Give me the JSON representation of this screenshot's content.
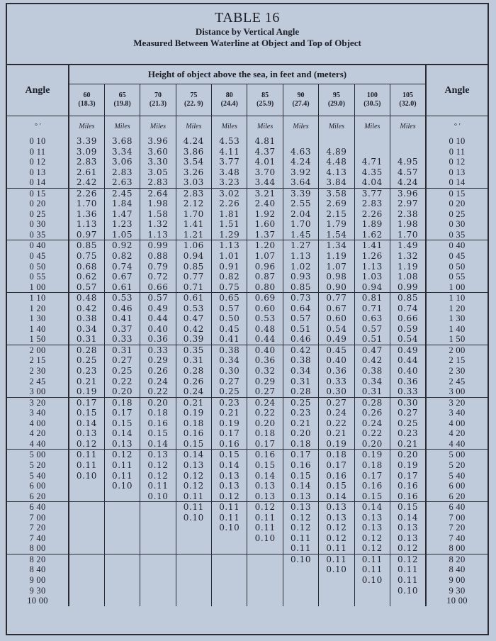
{
  "title": {
    "table_number": "TABLE 16",
    "subtitle": "Distance by Vertical Angle",
    "subtitle2": "Measured Between Waterline at Object and Top of Object"
  },
  "header": {
    "angle_label": "Angle",
    "height_label": "Height of object above the sea, in feet and (meters)",
    "angle_units": "°  ′",
    "unit_label": "Miles",
    "columns": [
      {
        "feet": "60",
        "meters": "(18.3)"
      },
      {
        "feet": "65",
        "meters": "(19.8)"
      },
      {
        "feet": "70",
        "meters": "(21.3)"
      },
      {
        "feet": "75",
        "meters": "(22. 9)"
      },
      {
        "feet": "80",
        "meters": "(24.4)"
      },
      {
        "feet": "85",
        "meters": "(25.9)"
      },
      {
        "feet": "90",
        "meters": "(27.4)"
      },
      {
        "feet": "95",
        "meters": "(29.0)"
      },
      {
        "feet": "100",
        "meters": "(30.5)"
      },
      {
        "feet": "105",
        "meters": "(32.0)"
      }
    ]
  },
  "group_sizes": [
    5,
    5,
    5,
    5,
    5,
    5,
    5,
    5,
    6
  ],
  "rows": [
    {
      "angle": "0 10",
      "values": [
        "3.39",
        "3.68",
        "3.96",
        "4.24",
        "4.53",
        "4.81",
        "",
        "",
        "",
        ""
      ]
    },
    {
      "angle": "0 11",
      "values": [
        "3.09",
        "3.34",
        "3.60",
        "3.86",
        "4.11",
        "4.37",
        "4.63",
        "4.89",
        "",
        ""
      ]
    },
    {
      "angle": "0 12",
      "values": [
        "2.83",
        "3.06",
        "3.30",
        "3.54",
        "3.77",
        "4.01",
        "4.24",
        "4.48",
        "4.71",
        "4.95"
      ]
    },
    {
      "angle": "0 13",
      "values": [
        "2.61",
        "2.83",
        "3.05",
        "3.26",
        "3.48",
        "3.70",
        "3.92",
        "4.13",
        "4.35",
        "4.57"
      ]
    },
    {
      "angle": "0 14",
      "values": [
        "2.42",
        "2.63",
        "2.83",
        "3.03",
        "3.23",
        "3.44",
        "3.64",
        "3.84",
        "4.04",
        "4.24"
      ]
    },
    {
      "angle": "0 15",
      "values": [
        "2.26",
        "2.45",
        "2.64",
        "2.83",
        "3.02",
        "3.21",
        "3.39",
        "3.58",
        "3.77",
        "3.96"
      ]
    },
    {
      "angle": "0 20",
      "values": [
        "1.70",
        "1.84",
        "1.98",
        "2.12",
        "2.26",
        "2.40",
        "2.55",
        "2.69",
        "2.83",
        "2.97"
      ]
    },
    {
      "angle": "0 25",
      "values": [
        "1.36",
        "1.47",
        "1.58",
        "1.70",
        "1.81",
        "1.92",
        "2.04",
        "2.15",
        "2.26",
        "2.38"
      ]
    },
    {
      "angle": "0 30",
      "values": [
        "1.13",
        "1.23",
        "1.32",
        "1.41",
        "1.51",
        "1.60",
        "1.70",
        "1.79",
        "1.89",
        "1.98"
      ]
    },
    {
      "angle": "0 35",
      "values": [
        "0.97",
        "1.05",
        "1.13",
        "1.21",
        "1.29",
        "1.37",
        "1.45",
        "1.54",
        "1.62",
        "1.70"
      ]
    },
    {
      "angle": "0 40",
      "values": [
        "0.85",
        "0.92",
        "0.99",
        "1.06",
        "1.13",
        "1.20",
        "1.27",
        "1.34",
        "1.41",
        "1.49"
      ]
    },
    {
      "angle": "0 45",
      "values": [
        "0.75",
        "0.82",
        "0.88",
        "0.94",
        "1.01",
        "1.07",
        "1.13",
        "1.19",
        "1.26",
        "1.32"
      ]
    },
    {
      "angle": "0 50",
      "values": [
        "0.68",
        "0.74",
        "0.79",
        "0.85",
        "0.91",
        "0.96",
        "1.02",
        "1.07",
        "1.13",
        "1.19"
      ]
    },
    {
      "angle": "0 55",
      "values": [
        "0.62",
        "0.67",
        "0.72",
        "0.77",
        "0.82",
        "0.87",
        "0.93",
        "0.98",
        "1.03",
        "1.08"
      ]
    },
    {
      "angle": "1 00",
      "values": [
        "0.57",
        "0.61",
        "0.66",
        "0.71",
        "0.75",
        "0.80",
        "0.85",
        "0.90",
        "0.94",
        "0.99"
      ]
    },
    {
      "angle": "1 10",
      "values": [
        "0.48",
        "0.53",
        "0.57",
        "0.61",
        "0.65",
        "0.69",
        "0.73",
        "0.77",
        "0.81",
        "0.85"
      ]
    },
    {
      "angle": "1 20",
      "values": [
        "0.42",
        "0.46",
        "0.49",
        "0.53",
        "0.57",
        "0.60",
        "0.64",
        "0.67",
        "0.71",
        "0.74"
      ]
    },
    {
      "angle": "1 30",
      "values": [
        "0.38",
        "0.41",
        "0.44",
        "0.47",
        "0.50",
        "0.53",
        "0.57",
        "0.60",
        "0.63",
        "0.66"
      ]
    },
    {
      "angle": "1 40",
      "values": [
        "0.34",
        "0.37",
        "0.40",
        "0.42",
        "0.45",
        "0.48",
        "0.51",
        "0.54",
        "0.57",
        "0.59"
      ]
    },
    {
      "angle": "1 50",
      "values": [
        "0.31",
        "0.33",
        "0.36",
        "0.39",
        "0.41",
        "0.44",
        "0.46",
        "0.49",
        "0.51",
        "0.54"
      ]
    },
    {
      "angle": "2 00",
      "values": [
        "0.28",
        "0.31",
        "0.33",
        "0.35",
        "0.38",
        "0.40",
        "0.42",
        "0.45",
        "0.47",
        "0.49"
      ]
    },
    {
      "angle": "2 15",
      "values": [
        "0.25",
        "0.27",
        "0.29",
        "0.31",
        "0.34",
        "0.36",
        "0.38",
        "0.40",
        "0.42",
        "0.44"
      ]
    },
    {
      "angle": "2 30",
      "values": [
        "0.23",
        "0.25",
        "0.26",
        "0.28",
        "0.30",
        "0.32",
        "0.34",
        "0.36",
        "0.38",
        "0.40"
      ]
    },
    {
      "angle": "2 45",
      "values": [
        "0.21",
        "0.22",
        "0.24",
        "0.26",
        "0.27",
        "0.29",
        "0.31",
        "0.33",
        "0.34",
        "0.36"
      ]
    },
    {
      "angle": "3 00",
      "values": [
        "0.19",
        "0.20",
        "0.22",
        "0.24",
        "0.25",
        "0.27",
        "0.28",
        "0.30",
        "0.31",
        "0.33"
      ]
    },
    {
      "angle": "3 20",
      "values": [
        "0.17",
        "0.18",
        "0.20",
        "0.21",
        "0.23",
        "0.24",
        "0.25",
        "0.27",
        "0.28",
        "0.30"
      ]
    },
    {
      "angle": "3 40",
      "values": [
        "0.15",
        "0.17",
        "0.18",
        "0.19",
        "0.21",
        "0.22",
        "0.23",
        "0.24",
        "0.26",
        "0.27"
      ]
    },
    {
      "angle": "4 00",
      "values": [
        "0.14",
        "0.15",
        "0.16",
        "0.18",
        "0.19",
        "0.20",
        "0.21",
        "0.22",
        "0.24",
        "0.25"
      ]
    },
    {
      "angle": "4 20",
      "values": [
        "0.13",
        "0.14",
        "0.15",
        "0.16",
        "0.17",
        "0.18",
        "0.20",
        "0.21",
        "0.22",
        "0.23"
      ]
    },
    {
      "angle": "4 40",
      "values": [
        "0.12",
        "0.13",
        "0.14",
        "0.15",
        "0.16",
        "0.17",
        "0.18",
        "0.19",
        "0.20",
        "0.21"
      ]
    },
    {
      "angle": "5 00",
      "values": [
        "0.11",
        "0.12",
        "0.13",
        "0.14",
        "0.15",
        "0.16",
        "0.17",
        "0.18",
        "0.19",
        "0.20"
      ]
    },
    {
      "angle": "5 20",
      "values": [
        "0.11",
        "0.11",
        "0.12",
        "0.13",
        "0.14",
        "0.15",
        "0.16",
        "0.17",
        "0.18",
        "0.19"
      ]
    },
    {
      "angle": "5 40",
      "values": [
        "0.10",
        "0.11",
        "0.12",
        "0.12",
        "0.13",
        "0.14",
        "0.15",
        "0.16",
        "0.17",
        "0.17"
      ]
    },
    {
      "angle": "6 00",
      "values": [
        "",
        "0.10",
        "0.11",
        "0.12",
        "0.13",
        "0.13",
        "0.14",
        "0.15",
        "0.16",
        "0.16"
      ]
    },
    {
      "angle": "6 20",
      "values": [
        "",
        "",
        "0.10",
        "0.11",
        "0.12",
        "0.13",
        "0.13",
        "0.14",
        "0.15",
        "0.16"
      ]
    },
    {
      "angle": "6 40",
      "values": [
        "",
        "",
        "",
        "0.11",
        "0.11",
        "0.12",
        "0.13",
        "0.13",
        "0.14",
        "0.15"
      ]
    },
    {
      "angle": "7 00",
      "values": [
        "",
        "",
        "",
        "0.10",
        "0.11",
        "0.11",
        "0.12",
        "0.13",
        "0.13",
        "0.14"
      ]
    },
    {
      "angle": "7 20",
      "values": [
        "",
        "",
        "",
        "",
        "0.10",
        "0.11",
        "0.12",
        "0.12",
        "0.13",
        "0.13"
      ]
    },
    {
      "angle": "7 40",
      "values": [
        "",
        "",
        "",
        "",
        "",
        "0.10",
        "0.11",
        "0.12",
        "0.12",
        "0.13"
      ]
    },
    {
      "angle": "8 00",
      "values": [
        "",
        "",
        "",
        "",
        "",
        "",
        "0.11",
        "0.11",
        "0.12",
        "0.12"
      ]
    },
    {
      "angle": "8 20",
      "values": [
        "",
        "",
        "",
        "",
        "",
        "",
        "0.10",
        "0.11",
        "0.11",
        "0.12"
      ]
    },
    {
      "angle": "8 40",
      "values": [
        "",
        "",
        "",
        "",
        "",
        "",
        "",
        "0.10",
        "0.11",
        "0.11"
      ]
    },
    {
      "angle": "9 00",
      "values": [
        "",
        "",
        "",
        "",
        "",
        "",
        "",
        "",
        "0.10",
        "0.11"
      ]
    },
    {
      "angle": "9 30",
      "values": [
        "",
        "",
        "",
        "",
        "",
        "",
        "",
        "",
        "",
        "0.10"
      ]
    },
    {
      "angle": "10 00",
      "values": [
        "",
        "",
        "",
        "",
        "",
        "",
        "",
        "",
        "",
        ""
      ]
    }
  ]
}
